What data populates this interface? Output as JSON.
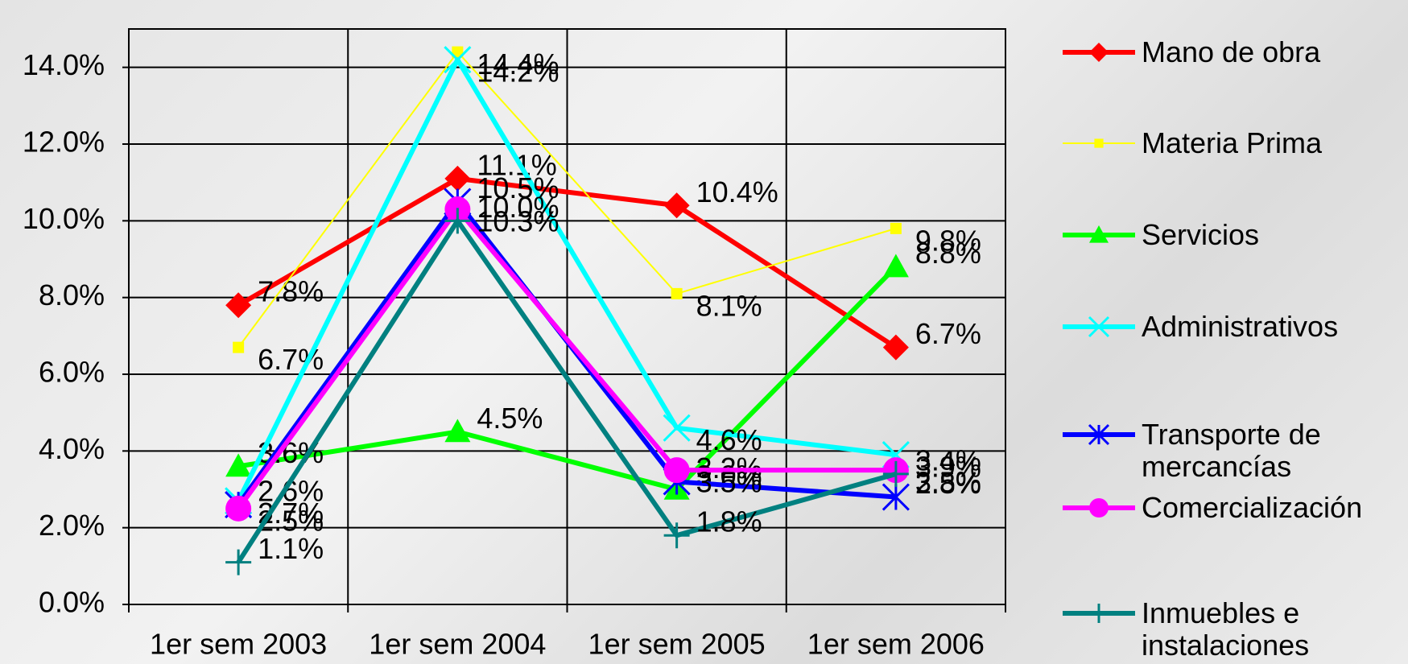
{
  "chart_data": {
    "type": "line",
    "categories": [
      "1er sem 2003",
      "1er sem 2004",
      "1er sem 2005",
      "1er sem 2006"
    ],
    "ylim": [
      0,
      15
    ],
    "yticks": [
      {
        "value": 0,
        "label": "0.0%"
      },
      {
        "value": 2,
        "label": "2.0%"
      },
      {
        "value": 4,
        "label": "4.0%"
      },
      {
        "value": 6,
        "label": "6.0%"
      },
      {
        "value": 8,
        "label": "8.0%"
      },
      {
        "value": 10,
        "label": "10.0%"
      },
      {
        "value": 12,
        "label": "12.0%"
      },
      {
        "value": 14,
        "label": "14.0%"
      }
    ],
    "grid": true,
    "legend": "right",
    "series": [
      {
        "name": "Mano de obra",
        "color": "#ff0000",
        "marker": "diamond",
        "values": [
          7.8,
          11.1,
          10.4,
          6.7
        ],
        "value_labels": [
          "7.8%",
          "11.1%",
          "10.4%",
          "6.7%"
        ]
      },
      {
        "name": "Materia Prima",
        "color": "#ffff00",
        "marker": "square",
        "values": [
          6.7,
          14.4,
          8.1,
          9.8
        ],
        "value_labels": [
          "6.7%",
          "14.4%",
          "8.1%",
          "9.8%"
        ]
      },
      {
        "name": "Servicios",
        "color": "#00ff00",
        "marker": "triangle",
        "values": [
          3.6,
          4.5,
          3.0,
          8.8
        ],
        "value_labels": [
          "3.6%",
          "4.5%",
          "3.0%",
          "8.8%"
        ]
      },
      {
        "name": "Administrativos",
        "color": "#00ffff",
        "marker": "x",
        "values": [
          2.7,
          14.2,
          4.6,
          3.9
        ],
        "value_labels": [
          "2.7%",
          "14.2%",
          "4.6%",
          "3.9%"
        ]
      },
      {
        "name": "Transporte de mercancías",
        "color": "#0000ff",
        "marker": "star",
        "values": [
          2.6,
          10.5,
          3.2,
          2.8
        ],
        "value_labels": [
          "2.6%",
          "10.5%",
          "3.2%",
          "2.8%"
        ]
      },
      {
        "name": "Comercialización",
        "color": "#ff00ff",
        "marker": "circle",
        "values": [
          2.5,
          10.3,
          3.5,
          3.5
        ],
        "value_labels": [
          "2.5%",
          "10.3%",
          "3.5%",
          "3.5%"
        ]
      },
      {
        "name": "Inmuebles e instalaciones",
        "color": "#008080",
        "marker": "plus",
        "values": [
          1.1,
          10.0,
          1.8,
          3.4
        ],
        "value_labels": [
          "1.1%",
          "10.0%",
          "1.8%",
          "3.4%"
        ]
      }
    ]
  }
}
